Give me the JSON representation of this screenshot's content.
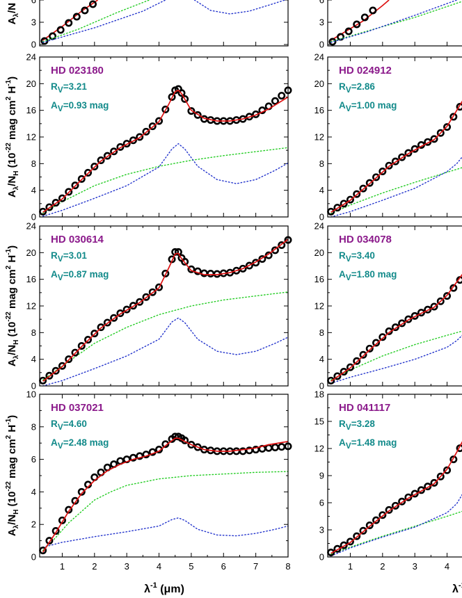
{
  "colors": {
    "star": "#8b1a8b",
    "param": "#128a8a",
    "model": "#dd1111",
    "green": "#22cc22",
    "blue": "#2233cc",
    "obs": "#000000"
  },
  "xaxis": {
    "label_main": "λ",
    "label_sup": "-1",
    "label_unit": " (μm)",
    "xlim": [
      0.3,
      8.0
    ],
    "left_ticks": [
      "1",
      "2",
      "3",
      "4",
      "5",
      "6",
      "7",
      "8"
    ],
    "right_ticks": [
      "1",
      "2",
      "3",
      "4"
    ]
  },
  "ylabel": {
    "a": "A",
    "a_sub": "λ",
    "slash_n": "/N",
    "n_sub": "H",
    "open": " (10",
    "exp": "-22",
    "mag": " mag cm",
    "exp2": "2",
    "h": " H",
    "exp3": "-1",
    "close": ")"
  },
  "top_fragment": {
    "left_ticks": [
      "0",
      "3",
      "6"
    ],
    "right_ticks": [
      "0",
      "3",
      "6"
    ]
  },
  "chart_data": [
    {
      "type": "line",
      "column": "left",
      "star": "HD 023180",
      "rv_label": "R",
      "rv_sub": "V",
      "rv_value": "=3.21",
      "av_label": "A",
      "av_sub": "V",
      "av_value": "=0.93 mag",
      "ylim": [
        0,
        24
      ],
      "y_ticks": [
        "0",
        "4",
        "8",
        "12",
        "16",
        "20",
        "24"
      ],
      "ext_scale": 1.0,
      "obs_points": [
        0.4,
        0.6,
        0.8,
        1.0,
        1.2,
        1.4,
        1.6,
        1.8,
        2.0,
        2.2,
        2.4,
        2.6,
        2.8,
        3.0,
        3.2,
        3.4,
        3.6,
        3.8,
        4.0,
        4.2,
        4.4,
        4.5,
        4.6,
        4.7,
        4.8,
        5.0,
        5.2,
        5.4,
        5.6,
        5.8,
        6.0,
        6.2,
        6.4,
        6.6,
        6.8,
        7.0,
        7.2,
        7.4,
        7.6,
        7.8,
        8.0
      ],
      "series": [
        {
          "name": "observed",
          "x": [
            0.4,
            1.0,
            1.6,
            2.2,
            2.8,
            3.4,
            4.0,
            4.3,
            4.5,
            4.6,
            4.7,
            5.0,
            5.4,
            5.8,
            6.2,
            6.6,
            7.0,
            7.4,
            8.0
          ],
          "values": [
            0.8,
            2.8,
            5.7,
            8.5,
            10.5,
            12.0,
            14.4,
            17.0,
            19.0,
            19.2,
            18.6,
            15.9,
            14.7,
            14.4,
            14.4,
            14.7,
            15.4,
            16.6,
            19.0
          ]
        },
        {
          "name": "model",
          "x": [
            0.4,
            1.0,
            1.6,
            2.2,
            2.8,
            3.4,
            4.0,
            4.3,
            4.5,
            4.6,
            4.7,
            5.0,
            5.4,
            5.8,
            6.2,
            6.6,
            7.0,
            7.4,
            8.0
          ],
          "values": [
            0.7,
            2.7,
            5.6,
            8.4,
            10.4,
            11.9,
            14.3,
            16.9,
            18.8,
            19.0,
            18.5,
            16.0,
            14.8,
            14.4,
            14.4,
            14.7,
            15.3,
            16.2,
            18.0
          ]
        },
        {
          "name": "green",
          "x": [
            0.4,
            1.0,
            2.0,
            3.0,
            4.0,
            5.0,
            6.0,
            7.0,
            8.0
          ],
          "values": [
            0.6,
            2.3,
            4.7,
            6.4,
            7.6,
            8.5,
            9.2,
            9.8,
            10.4
          ]
        },
        {
          "name": "blue",
          "x": [
            0.4,
            1.0,
            2.0,
            3.0,
            4.0,
            4.4,
            4.6,
            4.8,
            5.2,
            5.8,
            6.4,
            7.0,
            7.6,
            8.0
          ],
          "values": [
            0.1,
            1.0,
            2.8,
            4.7,
            7.5,
            10.2,
            11.0,
            10.2,
            7.6,
            5.6,
            5.0,
            5.6,
            7.0,
            8.1
          ]
        }
      ]
    },
    {
      "type": "line",
      "column": "left",
      "star": "HD 030614",
      "rv_label": "R",
      "rv_sub": "V",
      "rv_value": "=3.01",
      "av_label": "A",
      "av_sub": "V",
      "av_value": "=0.87 mag",
      "ylim": [
        0,
        24
      ],
      "y_ticks": [
        "0",
        "4",
        "8",
        "12",
        "16",
        "20",
        "24"
      ],
      "ext_scale": 1.0,
      "obs_points": [
        0.4,
        0.6,
        0.8,
        1.0,
        1.2,
        1.4,
        1.6,
        1.8,
        2.0,
        2.2,
        2.4,
        2.6,
        2.8,
        3.0,
        3.2,
        3.4,
        3.6,
        3.8,
        4.0,
        4.2,
        4.4,
        4.5,
        4.6,
        4.7,
        4.8,
        5.0,
        5.2,
        5.4,
        5.6,
        5.8,
        6.0,
        6.2,
        6.4,
        6.6,
        6.8,
        7.0,
        7.2,
        7.4,
        7.6,
        7.8,
        8.0
      ],
      "series": [
        {
          "name": "observed",
          "x": [
            0.4,
            1.0,
            1.6,
            2.2,
            2.8,
            3.4,
            4.0,
            4.3,
            4.5,
            4.6,
            4.7,
            5.0,
            5.4,
            5.8,
            6.2,
            6.6,
            7.0,
            7.4,
            8.0
          ],
          "values": [
            0.8,
            3.0,
            6.0,
            8.8,
            10.9,
            12.6,
            14.8,
            17.9,
            20.1,
            20.1,
            19.2,
            17.5,
            16.9,
            16.8,
            17.0,
            17.6,
            18.5,
            19.6,
            21.9
          ]
        },
        {
          "name": "model",
          "x": [
            0.4,
            1.0,
            1.6,
            2.2,
            2.8,
            3.4,
            4.0,
            4.3,
            4.5,
            4.6,
            4.7,
            5.0,
            5.4,
            5.8,
            6.2,
            6.6,
            7.0,
            7.4,
            8.0
          ],
          "values": [
            0.7,
            2.9,
            5.9,
            8.7,
            10.8,
            12.5,
            14.7,
            17.7,
            19.8,
            19.9,
            19.1,
            17.3,
            16.7,
            16.7,
            17.0,
            17.6,
            18.6,
            19.8,
            22.0
          ]
        },
        {
          "name": "green",
          "x": [
            0.4,
            1.0,
            2.0,
            3.0,
            4.0,
            5.0,
            6.0,
            7.0,
            8.0
          ],
          "values": [
            0.9,
            3.0,
            6.4,
            8.8,
            10.7,
            12.0,
            12.9,
            13.5,
            14.1
          ]
        },
        {
          "name": "blue",
          "x": [
            0.4,
            1.0,
            2.0,
            3.0,
            4.0,
            4.4,
            4.6,
            4.8,
            5.2,
            5.8,
            6.4,
            7.0,
            7.6,
            8.0
          ],
          "values": [
            0.0,
            0.8,
            2.6,
            4.5,
            7.0,
            9.6,
            10.2,
            9.5,
            7.0,
            5.2,
            4.7,
            5.2,
            6.4,
            7.3
          ]
        }
      ]
    },
    {
      "type": "line",
      "column": "left",
      "star": "HD 037021",
      "rv_label": "R",
      "rv_sub": "V",
      "rv_value": "=4.60",
      "av_label": "A",
      "av_sub": "V",
      "av_value": "=2.48 mag",
      "ylim": [
        0,
        10
      ],
      "y_ticks": [
        "0",
        "2",
        "4",
        "6",
        "8",
        "10"
      ],
      "ext_scale": 1.0,
      "obs_points": [
        0.4,
        0.6,
        0.8,
        1.0,
        1.2,
        1.4,
        1.6,
        1.8,
        2.0,
        2.2,
        2.4,
        2.6,
        2.8,
        3.0,
        3.2,
        3.4,
        3.6,
        3.8,
        4.0,
        4.2,
        4.4,
        4.5,
        4.6,
        4.7,
        4.8,
        5.0,
        5.2,
        5.4,
        5.6,
        5.8,
        6.0,
        6.2,
        6.4,
        6.6,
        6.8,
        7.0,
        7.2,
        7.4,
        7.6,
        7.8,
        8.0
      ],
      "series": [
        {
          "name": "observed",
          "x": [
            0.4,
            0.8,
            1.2,
            1.6,
            2.0,
            2.4,
            2.8,
            3.2,
            3.6,
            4.0,
            4.3,
            4.5,
            4.6,
            4.7,
            5.0,
            5.4,
            5.8,
            6.2,
            6.6,
            7.0,
            7.4,
            8.0
          ],
          "values": [
            0.4,
            1.6,
            2.9,
            4.0,
            4.9,
            5.5,
            5.9,
            6.1,
            6.3,
            6.6,
            7.1,
            7.4,
            7.4,
            7.3,
            6.9,
            6.6,
            6.5,
            6.5,
            6.5,
            6.6,
            6.7,
            6.8
          ]
        },
        {
          "name": "model",
          "x": [
            0.4,
            0.8,
            1.2,
            1.6,
            2.0,
            2.4,
            2.8,
            3.2,
            3.6,
            4.0,
            4.3,
            4.5,
            4.6,
            4.7,
            5.0,
            5.4,
            5.8,
            6.2,
            6.6,
            7.0,
            7.4,
            8.0
          ],
          "values": [
            0.3,
            1.5,
            2.8,
            3.9,
            4.7,
            5.3,
            5.7,
            6.0,
            6.2,
            6.5,
            7.0,
            7.3,
            7.3,
            7.2,
            6.9,
            6.6,
            6.5,
            6.5,
            6.6,
            6.7,
            6.9,
            7.1
          ]
        },
        {
          "name": "green",
          "x": [
            0.4,
            0.8,
            1.2,
            1.6,
            2.0,
            2.5,
            3.0,
            3.5,
            4.0,
            5.0,
            6.0,
            7.0,
            8.0
          ],
          "values": [
            0.4,
            1.2,
            2.1,
            2.8,
            3.5,
            4.0,
            4.4,
            4.6,
            4.8,
            5.0,
            5.1,
            5.2,
            5.25
          ]
        },
        {
          "name": "blue",
          "x": [
            0.4,
            1.0,
            2.0,
            3.0,
            4.0,
            4.4,
            4.6,
            4.8,
            5.2,
            5.8,
            6.4,
            7.0,
            7.6,
            8.0
          ],
          "values": [
            0.6,
            0.9,
            1.25,
            1.55,
            1.9,
            2.3,
            2.4,
            2.25,
            1.7,
            1.35,
            1.3,
            1.45,
            1.7,
            1.9
          ]
        }
      ]
    },
    {
      "type": "line",
      "column": "right",
      "star": "HD 024912",
      "rv_label": "R",
      "rv_sub": "V",
      "rv_value": "=2.86",
      "av_label": "A",
      "av_sub": "V",
      "av_value": "=1.00 mag",
      "ylim": [
        0,
        24
      ],
      "y_ticks": [
        "0",
        "4",
        "8",
        "12",
        "16",
        "20",
        "24"
      ],
      "obs_points": [
        0.4,
        0.6,
        0.8,
        1.0,
        1.2,
        1.4,
        1.6,
        1.8,
        2.0,
        2.2,
        2.4,
        2.6,
        2.8,
        3.0,
        3.2,
        3.4,
        3.6,
        3.8,
        4.0,
        4.2,
        4.4,
        4.6
      ],
      "series": [
        {
          "name": "observed",
          "x": [
            0.4,
            1.0,
            1.6,
            2.2,
            2.8,
            3.2,
            3.6,
            4.0,
            4.3,
            4.6
          ],
          "values": [
            0.8,
            2.6,
            5.1,
            7.7,
            9.6,
            10.8,
            11.7,
            13.5,
            15.8,
            18.0
          ]
        },
        {
          "name": "model",
          "x": [
            0.4,
            1.0,
            1.6,
            2.2,
            2.8,
            3.2,
            3.6,
            4.0,
            4.3,
            4.6
          ],
          "values": [
            0.7,
            2.5,
            5.0,
            7.6,
            9.5,
            10.6,
            11.6,
            13.6,
            16.0,
            18.4
          ]
        },
        {
          "name": "green",
          "x": [
            0.4,
            1.0,
            2.0,
            3.0,
            4.0,
            4.6
          ],
          "values": [
            0.5,
            1.8,
            3.6,
            5.2,
            6.7,
            7.6
          ]
        },
        {
          "name": "blue",
          "x": [
            0.4,
            1.0,
            2.0,
            3.0,
            4.0,
            4.3,
            4.6
          ],
          "values": [
            0.0,
            0.8,
            2.5,
            4.3,
            6.8,
            8.0,
            9.8
          ]
        }
      ]
    },
    {
      "type": "line",
      "column": "right",
      "star": "HD 034078",
      "rv_label": "R",
      "rv_sub": "V",
      "rv_value": "=3.40",
      "av_label": "A",
      "av_sub": "V",
      "av_value": "=1.80 mag",
      "ylim": [
        0,
        24
      ],
      "y_ticks": [
        "0",
        "4",
        "8",
        "12",
        "16",
        "20",
        "24"
      ],
      "obs_points": [
        0.4,
        0.6,
        0.8,
        1.0,
        1.2,
        1.4,
        1.6,
        1.8,
        2.0,
        2.2,
        2.4,
        2.6,
        2.8,
        3.0,
        3.2,
        3.4,
        3.6,
        3.8,
        4.0,
        4.2,
        4.4,
        4.6
      ],
      "series": [
        {
          "name": "observed",
          "x": [
            0.4,
            1.0,
            1.6,
            2.2,
            2.8,
            3.2,
            3.6,
            4.0,
            4.3,
            4.6
          ],
          "values": [
            0.8,
            2.8,
            5.6,
            8.2,
            10.0,
            11.0,
            11.9,
            13.5,
            15.3,
            17.1
          ]
        },
        {
          "name": "model",
          "x": [
            0.4,
            1.0,
            1.6,
            2.2,
            2.8,
            3.2,
            3.6,
            4.0,
            4.3,
            4.6
          ],
          "values": [
            0.7,
            2.7,
            5.4,
            8.0,
            9.9,
            10.9,
            11.8,
            13.6,
            15.6,
            17.6
          ]
        },
        {
          "name": "green",
          "x": [
            0.4,
            1.0,
            2.0,
            3.0,
            4.0,
            4.6
          ],
          "values": [
            0.9,
            2.4,
            4.5,
            6.2,
            7.6,
            8.4
          ]
        },
        {
          "name": "blue",
          "x": [
            0.4,
            1.0,
            2.0,
            3.0,
            4.0,
            4.3,
            4.6
          ],
          "values": [
            0.4,
            1.3,
            2.6,
            4.0,
            5.8,
            6.8,
            8.2
          ]
        }
      ]
    },
    {
      "type": "line",
      "column": "right",
      "star": "HD 041117",
      "rv_label": "R",
      "rv_sub": "V",
      "rv_value": "=3.28",
      "av_label": "A",
      "av_sub": "V",
      "av_value": "=1.48 mag",
      "ylim": [
        0,
        18
      ],
      "y_ticks": [
        "0",
        "3",
        "6",
        "9",
        "12",
        "15",
        "18"
      ],
      "obs_points": [
        0.4,
        0.6,
        0.8,
        1.0,
        1.2,
        1.4,
        1.6,
        1.8,
        2.0,
        2.2,
        2.4,
        2.6,
        2.8,
        3.0,
        3.2,
        3.4,
        3.6,
        3.8,
        4.0,
        4.2,
        4.4,
        4.6
      ],
      "series": [
        {
          "name": "observed",
          "x": [
            0.4,
            1.0,
            1.6,
            2.2,
            2.8,
            3.2,
            3.6,
            4.0,
            4.3,
            4.6
          ],
          "values": [
            0.5,
            1.7,
            3.5,
            5.2,
            6.6,
            7.4,
            8.2,
            9.6,
            11.4,
            13.3
          ]
        },
        {
          "name": "model",
          "x": [
            0.4,
            1.0,
            1.6,
            2.2,
            2.8,
            3.2,
            3.6,
            4.0,
            4.3,
            4.6
          ],
          "values": [
            0.4,
            1.6,
            3.4,
            5.1,
            6.5,
            7.3,
            8.1,
            9.7,
            11.6,
            13.6
          ]
        },
        {
          "name": "green",
          "x": [
            0.4,
            1.0,
            2.0,
            3.0,
            4.0,
            4.6
          ],
          "values": [
            0.3,
            1.1,
            2.3,
            3.4,
            4.5,
            5.2
          ]
        },
        {
          "name": "blue",
          "x": [
            0.4,
            1.0,
            2.0,
            3.0,
            4.0,
            4.3,
            4.6
          ],
          "values": [
            0.1,
            1.0,
            2.2,
            3.3,
            4.9,
            5.9,
            7.7
          ]
        }
      ]
    }
  ]
}
